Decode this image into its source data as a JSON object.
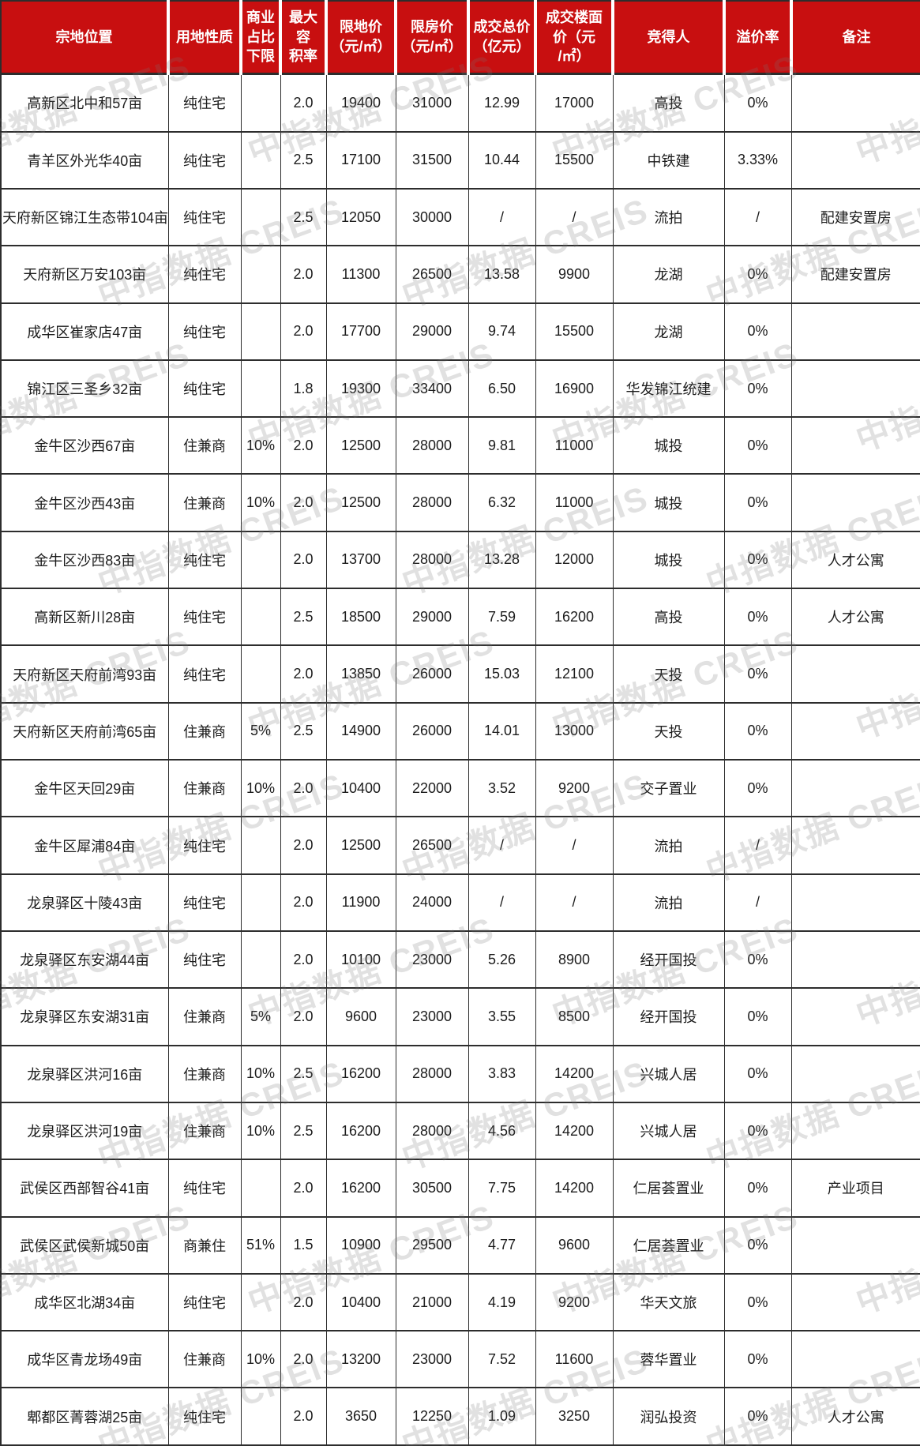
{
  "watermark": {
    "text": "中指数据  CREIS"
  },
  "colors": {
    "header_bg": "#c80f10",
    "header_text": "#ffffff",
    "grid_line": "#2d2d2d"
  },
  "table": {
    "columns": [
      {
        "id": "location",
        "label": "宗地位置"
      },
      {
        "id": "land_use",
        "label": "用地性质"
      },
      {
        "id": "commercial_ratio_min",
        "label": "商业\n占比\n下限"
      },
      {
        "id": "max_plot_ratio",
        "label": "最大容\n积率"
      },
      {
        "id": "land_price_cap",
        "label": "限地价\n（元/㎡）"
      },
      {
        "id": "house_price_cap",
        "label": "限房价\n（元/㎡）"
      },
      {
        "id": "total_price",
        "label": "成交总价\n（亿元）"
      },
      {
        "id": "floor_price",
        "label": "成交楼面\n价（元\n/㎡）"
      },
      {
        "id": "winner",
        "label": "竞得人"
      },
      {
        "id": "premium_rate",
        "label": "溢价率"
      },
      {
        "id": "note",
        "label": "备注"
      }
    ],
    "rows": [
      [
        "高新区北中和57亩",
        "纯住宅",
        "",
        "2.0",
        "19400",
        "31000",
        "12.99",
        "17000",
        "高投",
        "0%",
        ""
      ],
      [
        "青羊区外光华40亩",
        "纯住宅",
        "",
        "2.5",
        "17100",
        "31500",
        "10.44",
        "15500",
        "中铁建",
        "3.33%",
        ""
      ],
      [
        "天府新区锦江生态带104亩",
        "纯住宅",
        "",
        "2.5",
        "12050",
        "30000",
        "/",
        "/",
        "流拍",
        "/",
        "配建安置房"
      ],
      [
        "天府新区万安103亩",
        "纯住宅",
        "",
        "2.0",
        "11300",
        "26500",
        "13.58",
        "9900",
        "龙湖",
        "0%",
        "配建安置房"
      ],
      [
        "成华区崔家店47亩",
        "纯住宅",
        "",
        "2.0",
        "17700",
        "29000",
        "9.74",
        "15500",
        "龙湖",
        "0%",
        ""
      ],
      [
        "锦江区三圣乡32亩",
        "纯住宅",
        "",
        "1.8",
        "19300",
        "33400",
        "6.50",
        "16900",
        "华发锦江统建",
        "0%",
        ""
      ],
      [
        "金牛区沙西67亩",
        "住兼商",
        "10%",
        "2.0",
        "12500",
        "28000",
        "9.81",
        "11000",
        "城投",
        "0%",
        ""
      ],
      [
        "金牛区沙西43亩",
        "住兼商",
        "10%",
        "2.0",
        "12500",
        "28000",
        "6.32",
        "11000",
        "城投",
        "0%",
        ""
      ],
      [
        "金牛区沙西83亩",
        "纯住宅",
        "",
        "2.0",
        "13700",
        "28000",
        "13.28",
        "12000",
        "城投",
        "0%",
        "人才公寓"
      ],
      [
        "高新区新川28亩",
        "纯住宅",
        "",
        "2.5",
        "18500",
        "29000",
        "7.59",
        "16200",
        "高投",
        "0%",
        "人才公寓"
      ],
      [
        "天府新区天府前湾93亩",
        "纯住宅",
        "",
        "2.0",
        "13850",
        "26000",
        "15.03",
        "12100",
        "天投",
        "0%",
        ""
      ],
      [
        "天府新区天府前湾65亩",
        "住兼商",
        "5%",
        "2.5",
        "14900",
        "26000",
        "14.01",
        "13000",
        "天投",
        "0%",
        ""
      ],
      [
        "金牛区天回29亩",
        "住兼商",
        "10%",
        "2.0",
        "10400",
        "22000",
        "3.52",
        "9200",
        "交子置业",
        "0%",
        ""
      ],
      [
        "金牛区犀浦84亩",
        "纯住宅",
        "",
        "2.0",
        "12500",
        "26500",
        "/",
        "/",
        "流拍",
        "/",
        ""
      ],
      [
        "龙泉驿区十陵43亩",
        "纯住宅",
        "",
        "2.0",
        "11900",
        "24000",
        "/",
        "/",
        "流拍",
        "/",
        ""
      ],
      [
        "龙泉驿区东安湖44亩",
        "纯住宅",
        "",
        "2.0",
        "10100",
        "23000",
        "5.26",
        "8900",
        "经开国投",
        "0%",
        ""
      ],
      [
        "龙泉驿区东安湖31亩",
        "住兼商",
        "5%",
        "2.0",
        "9600",
        "23000",
        "3.55",
        "8500",
        "经开国投",
        "0%",
        ""
      ],
      [
        "龙泉驿区洪河16亩",
        "住兼商",
        "10%",
        "2.5",
        "16200",
        "28000",
        "3.83",
        "14200",
        "兴城人居",
        "0%",
        ""
      ],
      [
        "龙泉驿区洪河19亩",
        "住兼商",
        "10%",
        "2.5",
        "16200",
        "28000",
        "4.56",
        "14200",
        "兴城人居",
        "0%",
        ""
      ],
      [
        "武侯区西部智谷41亩",
        "纯住宅",
        "",
        "2.0",
        "16200",
        "30500",
        "7.75",
        "14200",
        "仁居荟置业",
        "0%",
        "产业项目"
      ],
      [
        "武侯区武侯新城50亩",
        "商兼住",
        "51%",
        "1.5",
        "10900",
        "29500",
        "4.77",
        "9600",
        "仁居荟置业",
        "0%",
        ""
      ],
      [
        "成华区北湖34亩",
        "纯住宅",
        "",
        "2.0",
        "10400",
        "21000",
        "4.19",
        "9200",
        "华天文旅",
        "0%",
        ""
      ],
      [
        "成华区青龙场49亩",
        "住兼商",
        "10%",
        "2.0",
        "13200",
        "23000",
        "7.52",
        "11600",
        "蓉华置业",
        "0%",
        ""
      ],
      [
        "郫都区菁蓉湖25亩",
        "纯住宅",
        "",
        "2.0",
        "3650",
        "12250",
        "1.09",
        "3250",
        "润弘投资",
        "0%",
        "人才公寓"
      ]
    ]
  }
}
